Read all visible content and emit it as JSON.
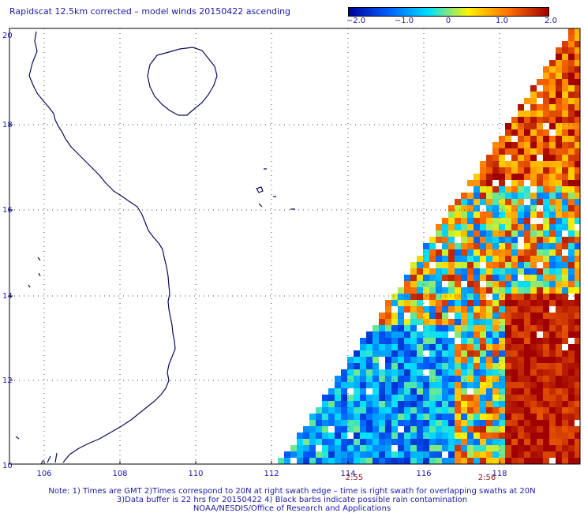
{
  "title": "Rapidscat 12.5km corrected – model winds 20150422 ascending",
  "colorbar": {
    "ticks": [
      "−2.0",
      "−1.0",
      "0",
      "1.0",
      "2.0"
    ],
    "colors": [
      "#0000a0",
      "#0060ff",
      "#00e0ff",
      "#fff000",
      "#ff7000",
      "#a00000"
    ]
  },
  "lat_labels": [
    "20",
    "18",
    "16",
    "14",
    "12",
    "10"
  ],
  "lon_labels": [
    "106",
    "108",
    "110",
    "112",
    "114",
    "116",
    "118"
  ],
  "time_labels": [
    "2:55",
    "2:56"
  ],
  "notes": [
    "Note: 1) Times are GMT 2)Times correspond to 20N at right swath edge – time is right swath for overlapping swaths at 20N",
    "3)Data buffer is 22 hrs for 20150422 4) Black barbs indicate possible rain contamination",
    "NOAA/NESDIS/Office of Research and Applications"
  ]
}
